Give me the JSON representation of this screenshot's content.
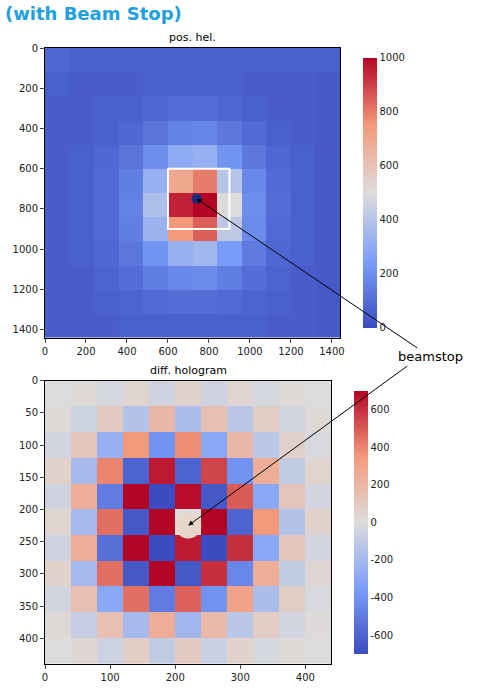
{
  "title": "(with Beam Stop)",
  "annotation": "beamstop",
  "chart_data": [
    {
      "type": "heatmap",
      "title": "pos. hel.",
      "x": [
        60,
        180,
        300,
        420,
        540,
        660,
        780,
        900,
        1020,
        1140,
        1260,
        1380
      ],
      "y": [
        60,
        180,
        300,
        420,
        540,
        660,
        780,
        900,
        1020,
        1140,
        1260,
        1380
      ],
      "cells": [
        [
          80,
          60,
          60,
          60,
          60,
          60,
          60,
          60,
          60,
          60,
          60,
          60
        ],
        [
          60,
          50,
          50,
          50,
          60,
          60,
          60,
          60,
          50,
          50,
          50,
          40
        ],
        [
          50,
          50,
          60,
          60,
          80,
          100,
          100,
          80,
          60,
          50,
          50,
          40
        ],
        [
          50,
          50,
          60,
          80,
          120,
          160,
          170,
          130,
          90,
          60,
          50,
          40
        ],
        [
          50,
          60,
          80,
          120,
          200,
          300,
          320,
          220,
          130,
          80,
          60,
          40
        ],
        [
          50,
          60,
          90,
          150,
          320,
          700,
          800,
          400,
          180,
          90,
          60,
          40
        ],
        [
          50,
          60,
          90,
          160,
          380,
          950,
          1000,
          500,
          200,
          100,
          60,
          40
        ],
        [
          50,
          60,
          90,
          150,
          330,
          750,
          850,
          420,
          190,
          90,
          60,
          40
        ],
        [
          50,
          60,
          80,
          130,
          220,
          320,
          350,
          240,
          140,
          80,
          60,
          40
        ],
        [
          50,
          50,
          70,
          100,
          150,
          180,
          190,
          150,
          100,
          70,
          50,
          40
        ],
        [
          50,
          50,
          60,
          70,
          90,
          100,
          100,
          90,
          70,
          60,
          50,
          40
        ],
        [
          50,
          50,
          50,
          60,
          60,
          60,
          60,
          60,
          60,
          50,
          50,
          40
        ]
      ],
      "xlim": [
        0,
        1440
      ],
      "ylim": [
        1440,
        0
      ],
      "xticks": [
        0,
        200,
        400,
        600,
        800,
        1000,
        1200,
        1400
      ],
      "yticks": [
        0,
        200,
        400,
        600,
        800,
        1000,
        1200,
        1400
      ],
      "colorbar": {
        "range": [
          0,
          1000
        ],
        "ticks": [
          0,
          200,
          400,
          600,
          800,
          1000
        ]
      },
      "roi": {
        "x": [
          600,
          900
        ],
        "y": [
          600,
          900
        ]
      },
      "beamstop": {
        "x": 740,
        "y": 750,
        "r": 25
      }
    },
    {
      "type": "heatmap",
      "title": "diff. hologram",
      "x": [
        20,
        60,
        100,
        140,
        180,
        220,
        260,
        300,
        340,
        380,
        420
      ],
      "y": [
        20,
        60,
        100,
        140,
        180,
        220,
        260,
        300,
        340,
        380,
        420
      ],
      "cells": [
        [
          0,
          20,
          -30,
          40,
          -50,
          60,
          -50,
          40,
          -30,
          20,
          0
        ],
        [
          20,
          -60,
          100,
          -150,
          200,
          -180,
          150,
          -120,
          80,
          -40,
          20
        ],
        [
          -40,
          120,
          -250,
          350,
          -400,
          380,
          -300,
          200,
          -120,
          60,
          -20
        ],
        [
          60,
          -200,
          400,
          -600,
          650,
          -600,
          550,
          -400,
          250,
          -100,
          40
        ],
        [
          -50,
          250,
          -500,
          700,
          -700,
          680,
          -650,
          500,
          -300,
          120,
          -40
        ],
        [
          40,
          -200,
          450,
          -650,
          700,
          0,
          700,
          -600,
          350,
          -150,
          50
        ],
        [
          -50,
          250,
          -550,
          700,
          -700,
          650,
          -700,
          600,
          -300,
          120,
          -40
        ],
        [
          60,
          -200,
          450,
          -650,
          700,
          -650,
          600,
          -450,
          250,
          -100,
          30
        ],
        [
          -40,
          150,
          -300,
          450,
          -500,
          480,
          -400,
          300,
          -180,
          80,
          -20
        ],
        [
          20,
          -80,
          150,
          -200,
          250,
          -220,
          180,
          -120,
          80,
          -40,
          10
        ],
        [
          0,
          30,
          -60,
          80,
          -100,
          90,
          -70,
          50,
          -30,
          20,
          0
        ]
      ],
      "xlim": [
        0,
        440
      ],
      "ylim": [
        440,
        0
      ],
      "xticks": [
        0,
        100,
        200,
        300,
        400
      ],
      "yticks": [
        0,
        50,
        100,
        150,
        200,
        250,
        300,
        350,
        400
      ],
      "colorbar": {
        "range": [
          -700,
          700
        ],
        "ticks": [
          -600,
          -400,
          -200,
          0,
          200,
          400,
          600
        ]
      },
      "beamstop": {
        "x": 220,
        "y": 225,
        "r": 20
      }
    }
  ]
}
